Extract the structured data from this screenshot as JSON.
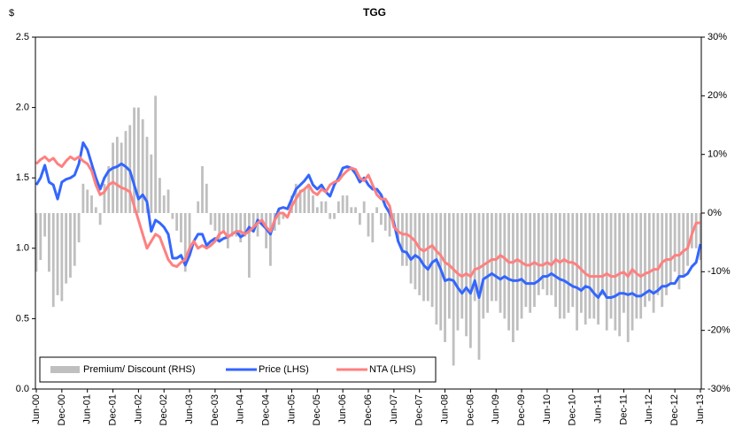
{
  "chart_data": {
    "type": "combo",
    "title": "TGG",
    "y_label": "$",
    "categories": [
      "Jun-00",
      null,
      null,
      null,
      null,
      null,
      "Dec-00",
      null,
      null,
      null,
      null,
      null,
      "Jun-01",
      null,
      null,
      null,
      null,
      null,
      "Dec-01",
      null,
      null,
      null,
      null,
      null,
      "Jun-02",
      null,
      null,
      null,
      null,
      null,
      "Dec-02",
      null,
      null,
      null,
      null,
      null,
      "Jun-03",
      null,
      null,
      null,
      null,
      null,
      "Dec-03",
      null,
      null,
      null,
      null,
      null,
      "Jun-04",
      null,
      null,
      null,
      null,
      null,
      "Dec-04",
      null,
      null,
      null,
      null,
      null,
      "Jun-05",
      null,
      null,
      null,
      null,
      null,
      "Dec-05",
      null,
      null,
      null,
      null,
      null,
      "Jun-06",
      null,
      null,
      null,
      null,
      null,
      "Dec-06",
      null,
      null,
      null,
      null,
      null,
      "Jun-07",
      null,
      null,
      null,
      null,
      null,
      "Dec-07",
      null,
      null,
      null,
      null,
      null,
      "Jun-08",
      null,
      null,
      null,
      null,
      null,
      "Dec-08",
      null,
      null,
      null,
      null,
      null,
      "Jun-09",
      null,
      null,
      null,
      null,
      null,
      "Dec-09",
      null,
      null,
      null,
      null,
      null,
      "Jun-10",
      null,
      null,
      null,
      null,
      null,
      "Dec-10",
      null,
      null,
      null,
      null,
      null,
      "Jun-11",
      null,
      null,
      null,
      null,
      null,
      "Dec-11",
      null,
      null,
      null,
      null,
      null,
      "Jun-12",
      null,
      null,
      null,
      null,
      null,
      "Dec-12",
      null,
      null,
      null,
      null,
      null,
      "Jun-13"
    ],
    "series": [
      {
        "name": "Premium/ Discount (RHS)",
        "type": "bar",
        "axis": "y2",
        "color": "#bfbfbf",
        "values": [
          -10,
          -8,
          -4,
          -10,
          -16,
          -14,
          -15,
          -12,
          -11,
          -9,
          -5,
          5,
          4,
          3,
          1,
          -2,
          5,
          8,
          12,
          13,
          12,
          14,
          15,
          18,
          18,
          16,
          13,
          10,
          20,
          6,
          3,
          4,
          -1,
          -3,
          -5,
          -10,
          -7,
          0,
          2,
          8,
          5,
          -2,
          -3,
          -5,
          -3,
          -6,
          -4,
          -4,
          -5,
          -4,
          -11,
          -3,
          -4,
          -2,
          -6,
          -9,
          -3,
          -2,
          -1,
          0,
          3,
          5,
          4,
          4,
          5,
          3,
          1,
          2,
          2,
          -1,
          -1,
          2,
          3,
          3,
          1,
          1,
          -2,
          2,
          -4,
          -5,
          1,
          -2,
          -3,
          -4,
          -2,
          -5,
          -9,
          -9,
          -12,
          -13,
          -14,
          -15,
          -15,
          -16,
          -19,
          -20,
          -22,
          -18,
          -26,
          -20,
          -18,
          -21,
          -23,
          -15,
          -25,
          -18,
          -17,
          -15,
          -15,
          -17,
          -18,
          -20,
          -22,
          -20,
          -18,
          -16,
          -17,
          -16,
          -14,
          -13,
          -14,
          -14,
          -16,
          -18,
          -18,
          -17,
          -16,
          -20,
          -17,
          -19,
          -18,
          -18,
          -19,
          -14,
          -20,
          -18,
          -20,
          -21,
          -17,
          -22,
          -20,
          -18,
          -18,
          -16,
          -15,
          -17,
          -14,
          -16,
          -14,
          -12,
          -10,
          -13,
          -11,
          -9,
          -6,
          -6,
          -8
        ]
      },
      {
        "name": "Price (LHS)",
        "type": "line",
        "color": "#3366ff",
        "values": [
          1.45,
          1.5,
          1.59,
          1.47,
          1.45,
          1.35,
          1.47,
          1.49,
          1.5,
          1.52,
          1.6,
          1.75,
          1.7,
          1.6,
          1.5,
          1.42,
          1.5,
          1.55,
          1.57,
          1.58,
          1.6,
          1.58,
          1.55,
          1.45,
          1.35,
          1.38,
          1.33,
          1.12,
          1.2,
          1.18,
          1.15,
          1.1,
          0.93,
          0.93,
          0.95,
          0.88,
          0.95,
          1.05,
          1.1,
          1.1,
          1.02,
          1.05,
          1.07,
          1.05,
          1.07,
          1.08,
          1.1,
          1.12,
          1.08,
          1.1,
          1.15,
          1.12,
          1.2,
          1.17,
          1.14,
          1.1,
          1.2,
          1.28,
          1.29,
          1.28,
          1.35,
          1.42,
          1.45,
          1.48,
          1.52,
          1.45,
          1.42,
          1.45,
          1.4,
          1.37,
          1.45,
          1.5,
          1.57,
          1.58,
          1.57,
          1.53,
          1.47,
          1.5,
          1.45,
          1.42,
          1.42,
          1.38,
          1.3,
          1.25,
          1.18,
          1.05,
          0.98,
          0.97,
          0.92,
          0.95,
          0.93,
          0.88,
          0.85,
          0.9,
          0.92,
          0.85,
          0.77,
          0.78,
          0.77,
          0.72,
          0.68,
          0.72,
          0.68,
          0.77,
          0.65,
          0.78,
          0.8,
          0.82,
          0.8,
          0.78,
          0.8,
          0.78,
          0.77,
          0.77,
          0.78,
          0.75,
          0.75,
          0.75,
          0.77,
          0.8,
          0.8,
          0.82,
          0.8,
          0.78,
          0.77,
          0.75,
          0.73,
          0.72,
          0.7,
          0.73,
          0.72,
          0.68,
          0.65,
          0.7,
          0.65,
          0.65,
          0.66,
          0.68,
          0.68,
          0.67,
          0.68,
          0.66,
          0.66,
          0.68,
          0.7,
          0.68,
          0.7,
          0.73,
          0.73,
          0.75,
          0.75,
          0.8,
          0.8,
          0.82,
          0.87,
          0.9,
          1.03
        ]
      },
      {
        "name": "NTA (LHS)",
        "type": "line",
        "color": "#ff8080",
        "values": [
          1.6,
          1.63,
          1.65,
          1.62,
          1.64,
          1.6,
          1.58,
          1.62,
          1.65,
          1.63,
          1.65,
          1.62,
          1.6,
          1.55,
          1.45,
          1.38,
          1.4,
          1.45,
          1.47,
          1.45,
          1.43,
          1.42,
          1.4,
          1.3,
          1.2,
          1.1,
          1.0,
          1.05,
          1.1,
          1.08,
          1.0,
          0.92,
          0.88,
          0.87,
          0.9,
          0.92,
          1.0,
          1.05,
          1.0,
          1.02,
          1.0,
          1.02,
          1.05,
          1.1,
          1.12,
          1.08,
          1.1,
          1.12,
          1.12,
          1.1,
          1.12,
          1.15,
          1.18,
          1.2,
          1.15,
          1.12,
          1.2,
          1.25,
          1.25,
          1.22,
          1.3,
          1.35,
          1.4,
          1.42,
          1.45,
          1.4,
          1.38,
          1.42,
          1.4,
          1.45,
          1.47,
          1.48,
          1.52,
          1.55,
          1.57,
          1.56,
          1.5,
          1.48,
          1.52,
          1.45,
          1.38,
          1.35,
          1.35,
          1.3,
          1.15,
          1.12,
          1.1,
          1.1,
          1.08,
          1.05,
          1.0,
          0.98,
          1.0,
          1.02,
          0.98,
          0.95,
          0.9,
          0.88,
          0.85,
          0.82,
          0.8,
          0.82,
          0.8,
          0.85,
          0.86,
          0.88,
          0.9,
          0.92,
          0.92,
          0.95,
          0.93,
          0.9,
          0.9,
          0.92,
          0.9,
          0.88,
          0.88,
          0.9,
          0.88,
          0.88,
          0.9,
          0.88,
          0.92,
          0.9,
          0.92,
          0.9,
          0.9,
          0.88,
          0.85,
          0.82,
          0.8,
          0.8,
          0.8,
          0.8,
          0.82,
          0.8,
          0.8,
          0.82,
          0.83,
          0.8,
          0.85,
          0.82,
          0.8,
          0.82,
          0.83,
          0.85,
          0.85,
          0.9,
          0.92,
          0.92,
          0.95,
          0.95,
          0.98,
          1.0,
          1.1,
          1.18,
          1.18
        ]
      }
    ],
    "ylim": [
      0,
      2.5
    ],
    "yticks": [
      {
        "value": 0,
        "label": "0.0"
      },
      0.5,
      {
        "value": 1,
        "label": "1.0"
      },
      1.5,
      {
        "value": 2,
        "label": "2.0"
      },
      2.5
    ],
    "y2lim": [
      -30,
      30
    ],
    "y2ticks": [
      {
        "value": -30,
        "label": "-30%"
      },
      {
        "value": -20,
        "label": "-20%"
      },
      {
        "value": -10,
        "label": "-10%"
      },
      {
        "value": 0,
        "label": "0%"
      },
      {
        "value": 10,
        "label": "10%"
      },
      {
        "value": 20,
        "label": "20%"
      },
      {
        "value": 30,
        "label": "30%"
      }
    ],
    "legend": "lower left",
    "grid": false
  }
}
